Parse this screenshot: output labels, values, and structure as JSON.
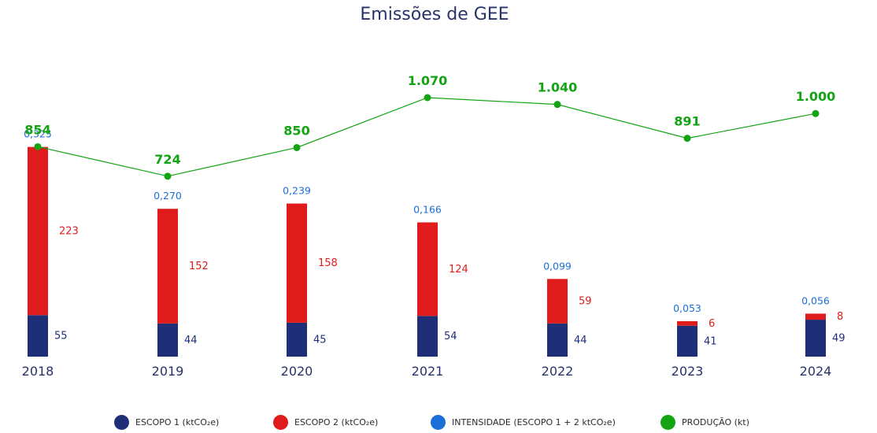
{
  "title": "Emissões de GEE",
  "colors": {
    "escopo1": "#1e2f78",
    "escopo2": "#e01b1b",
    "intensidade": "#1a6fd8",
    "producao": "#13a313"
  },
  "legend": [
    {
      "key": "escopo1",
      "label": "ESCOPO 1 (ktCO₂e)"
    },
    {
      "key": "escopo2",
      "label": "ESCOPO 2 (ktCO₂e)"
    },
    {
      "key": "intensidade",
      "label": "INTENSIDADE (ESCOPO 1 + 2 ktCO₂e)"
    },
    {
      "key": "producao",
      "label": "PRODUÇÃO (kt)"
    }
  ],
  "chart_data": {
    "type": "bar",
    "stacked": true,
    "title": "Emissões de GEE",
    "categories": [
      "2018",
      "2019",
      "2020",
      "2021",
      "2022",
      "2023",
      "2024"
    ],
    "series": [
      {
        "name": "ESCOPO 1 (ktCO₂e)",
        "key": "escopo1",
        "type": "bar",
        "values": [
          55,
          44,
          45,
          54,
          44,
          41,
          49
        ]
      },
      {
        "name": "ESCOPO 2 (ktCO₂e)",
        "key": "escopo2",
        "type": "bar",
        "values": [
          223,
          152,
          158,
          124,
          59,
          6,
          8
        ]
      },
      {
        "name": "INTENSIDADE (ESCOPO 1 + 2 ktCO₂e)",
        "key": "intensidade",
        "type": "label",
        "values": [
          0.325,
          0.27,
          0.239,
          0.166,
          0.099,
          0.053,
          0.056
        ]
      },
      {
        "name": "PRODUÇÃO (kt)",
        "key": "producao",
        "type": "line",
        "values": [
          854,
          724,
          850,
          1070,
          1040,
          891,
          1000
        ]
      }
    ],
    "display_labels": {
      "escopo1": [
        "55",
        "44",
        "45",
        "54",
        "44",
        "41",
        "49"
      ],
      "escopo2": [
        "223",
        "152",
        "158",
        "124",
        "59",
        "6",
        "8"
      ],
      "intensidade": [
        "0,325",
        "0,270",
        "0,239",
        "0,166",
        "0,099",
        "0,053",
        "0,056"
      ],
      "producao": [
        "854",
        "724",
        "850",
        "1.070",
        "1.040",
        "891",
        "1.000"
      ]
    },
    "grid": false,
    "legend_position": "bottom"
  }
}
